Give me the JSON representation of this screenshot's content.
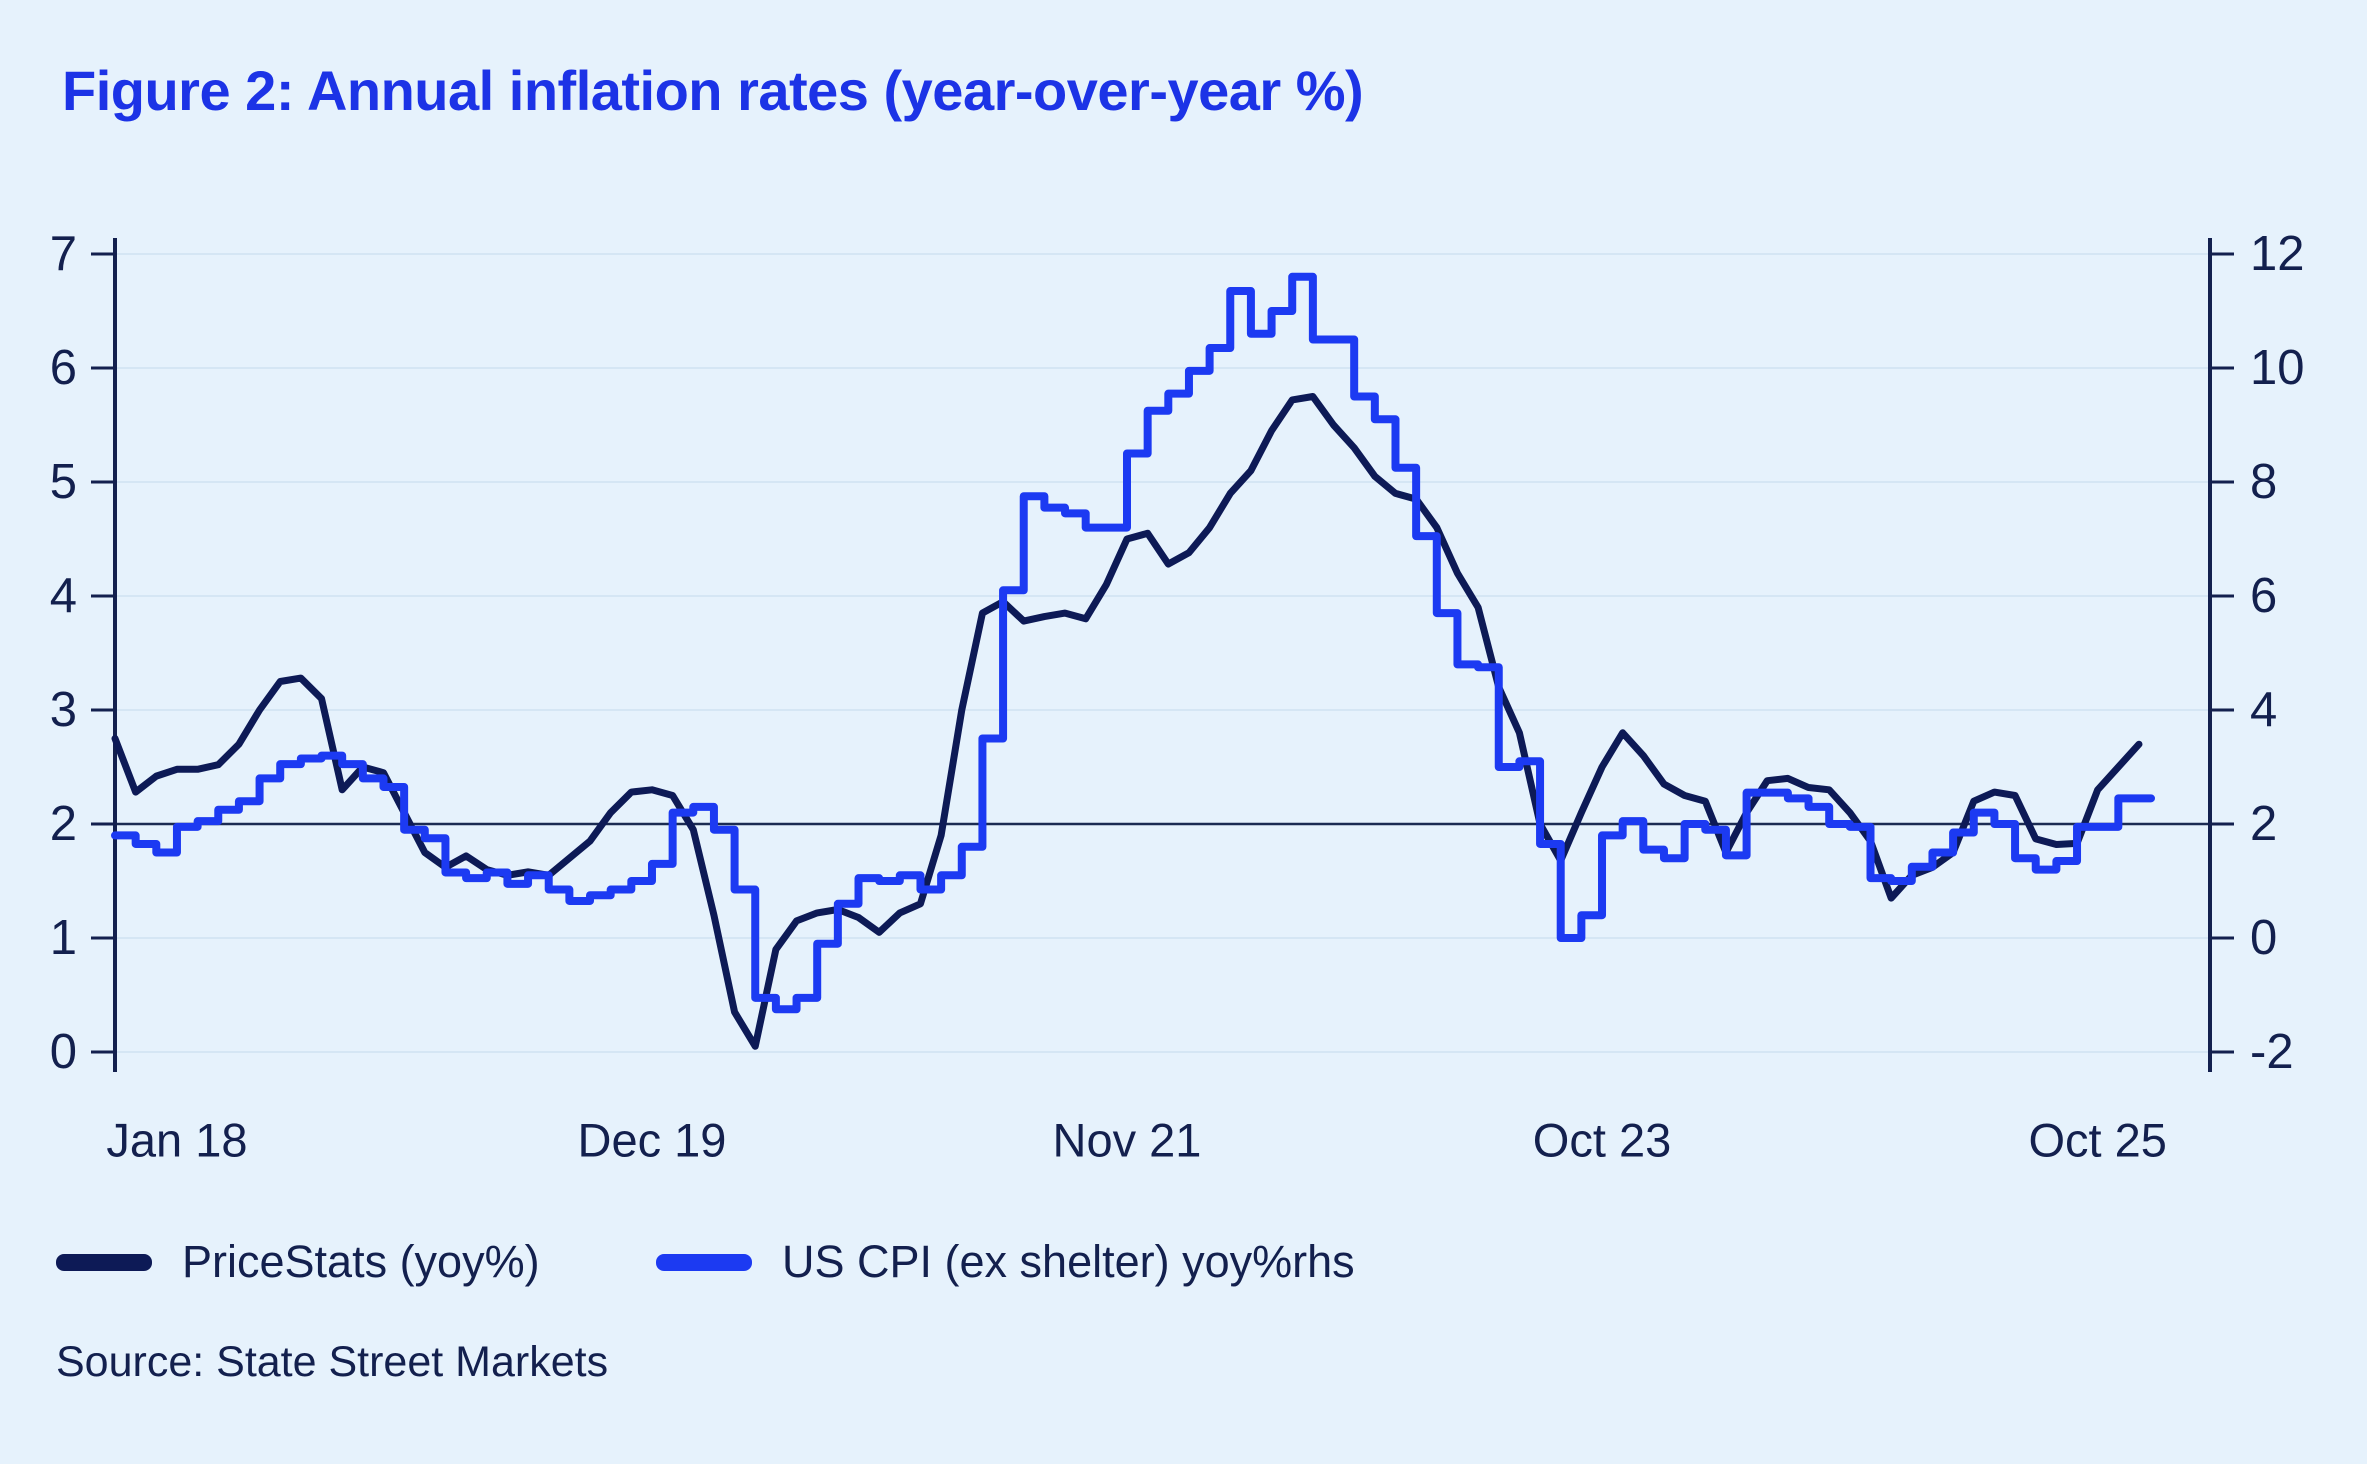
{
  "title": "Figure 2: Annual inflation rates (year-over-year %)",
  "source": "Source: State Street Markets",
  "legend": {
    "items": [
      {
        "label": "PriceStats (yoy%)",
        "color": "#0d1a56"
      },
      {
        "label": "US CPI (ex shelter) yoy%rhs",
        "color": "#1c3af2"
      }
    ]
  },
  "colors": {
    "background": "#e6f2fc",
    "title": "#1c33e6",
    "text": "#13204e",
    "axis": "#13204e",
    "gridline": "#d5e6f4",
    "refline": "#1b2b52",
    "pricestats_line": "#0d1a56",
    "cpi_line": "#1c3af2"
  },
  "chart_data": {
    "type": "line",
    "title": "Figure 2: Annual inflation rates (year-over-year %)",
    "xlabel": "",
    "ylabel_left": "PriceStats yoy %",
    "ylabel_right": "US CPI (ex shelter) yoy %",
    "frequency": "monthly",
    "start_month": "2017-10",
    "end_month": "2025-12",
    "grid": true,
    "legend_position": "bottom-left",
    "x_ticks": [
      {
        "label": "Jan 18",
        "month_index": 3
      },
      {
        "label": "Dec 19",
        "month_index": 26
      },
      {
        "label": "Nov 21",
        "month_index": 49
      },
      {
        "label": "Oct 23",
        "month_index": 72
      },
      {
        "label": "Oct 25",
        "month_index": 96
      }
    ],
    "left_axis": {
      "min": 0,
      "max": 7,
      "ticks": [
        0,
        1,
        2,
        3,
        4,
        5,
        6,
        7
      ]
    },
    "right_axis": {
      "min": -2,
      "max": 12,
      "ticks": [
        -2,
        0,
        2,
        4,
        6,
        8,
        10,
        12
      ]
    },
    "reference_line": {
      "value": 2,
      "axis": "left"
    },
    "series": [
      {
        "name": "PriceStats (yoy%)",
        "axis": "left",
        "style": "linear",
        "color": "#0d1a56",
        "width": 7,
        "values": [
          2.75,
          2.28,
          2.42,
          2.48,
          2.48,
          2.52,
          2.7,
          3.0,
          3.25,
          3.28,
          3.1,
          2.3,
          2.5,
          2.45,
          2.1,
          1.75,
          1.62,
          1.72,
          1.6,
          1.55,
          1.58,
          1.55,
          1.7,
          1.85,
          2.1,
          2.28,
          2.3,
          2.25,
          1.95,
          1.2,
          0.35,
          0.05,
          0.9,
          1.15,
          1.22,
          1.25,
          1.18,
          1.05,
          1.22,
          1.3,
          1.9,
          3.0,
          3.85,
          3.95,
          3.78,
          3.82,
          3.85,
          3.8,
          4.1,
          4.5,
          4.55,
          4.28,
          4.38,
          4.6,
          4.9,
          5.1,
          5.45,
          5.72,
          5.75,
          5.5,
          5.3,
          5.05,
          4.9,
          4.85,
          4.6,
          4.2,
          3.9,
          3.2,
          2.8,
          2.0,
          1.68,
          2.1,
          2.5,
          2.8,
          2.6,
          2.35,
          2.25,
          2.2,
          1.75,
          2.1,
          2.38,
          2.4,
          2.32,
          2.3,
          2.1,
          1.85,
          1.35,
          1.55,
          1.62,
          1.75,
          2.2,
          2.28,
          2.25,
          1.87,
          1.82,
          1.83,
          2.3,
          2.5,
          2.7
        ]
      },
      {
        "name": "US CPI (ex shelter) yoy%rhs",
        "axis": "right",
        "style": "step",
        "color": "#1c3af2",
        "width": 8,
        "values": [
          1.8,
          1.65,
          1.5,
          1.95,
          2.05,
          2.25,
          2.4,
          2.8,
          3.05,
          3.15,
          3.2,
          3.05,
          2.8,
          2.65,
          1.9,
          1.75,
          1.15,
          1.05,
          1.15,
          0.95,
          1.1,
          0.85,
          0.65,
          0.75,
          0.85,
          1.0,
          1.3,
          2.2,
          2.3,
          1.9,
          0.85,
          -1.05,
          -1.25,
          -1.05,
          -0.1,
          0.6,
          1.05,
          1.0,
          1.1,
          0.85,
          1.1,
          1.6,
          3.5,
          6.1,
          7.75,
          7.55,
          7.45,
          7.2,
          7.2,
          8.5,
          9.25,
          9.55,
          9.95,
          10.35,
          11.35,
          10.6,
          11.0,
          11.6,
          10.5,
          10.5,
          9.5,
          9.1,
          8.25,
          7.05,
          5.7,
          4.8,
          4.75,
          3.0,
          3.1,
          1.65,
          0.0,
          0.4,
          1.8,
          2.05,
          1.55,
          1.4,
          2.0,
          1.9,
          1.45,
          2.55,
          2.55,
          2.45,
          2.3,
          2.0,
          1.95,
          1.05,
          1.0,
          1.25,
          1.5,
          1.85,
          2.2,
          2.0,
          1.4,
          1.2,
          1.35,
          1.95,
          1.95,
          2.45,
          2.45
        ]
      }
    ]
  }
}
